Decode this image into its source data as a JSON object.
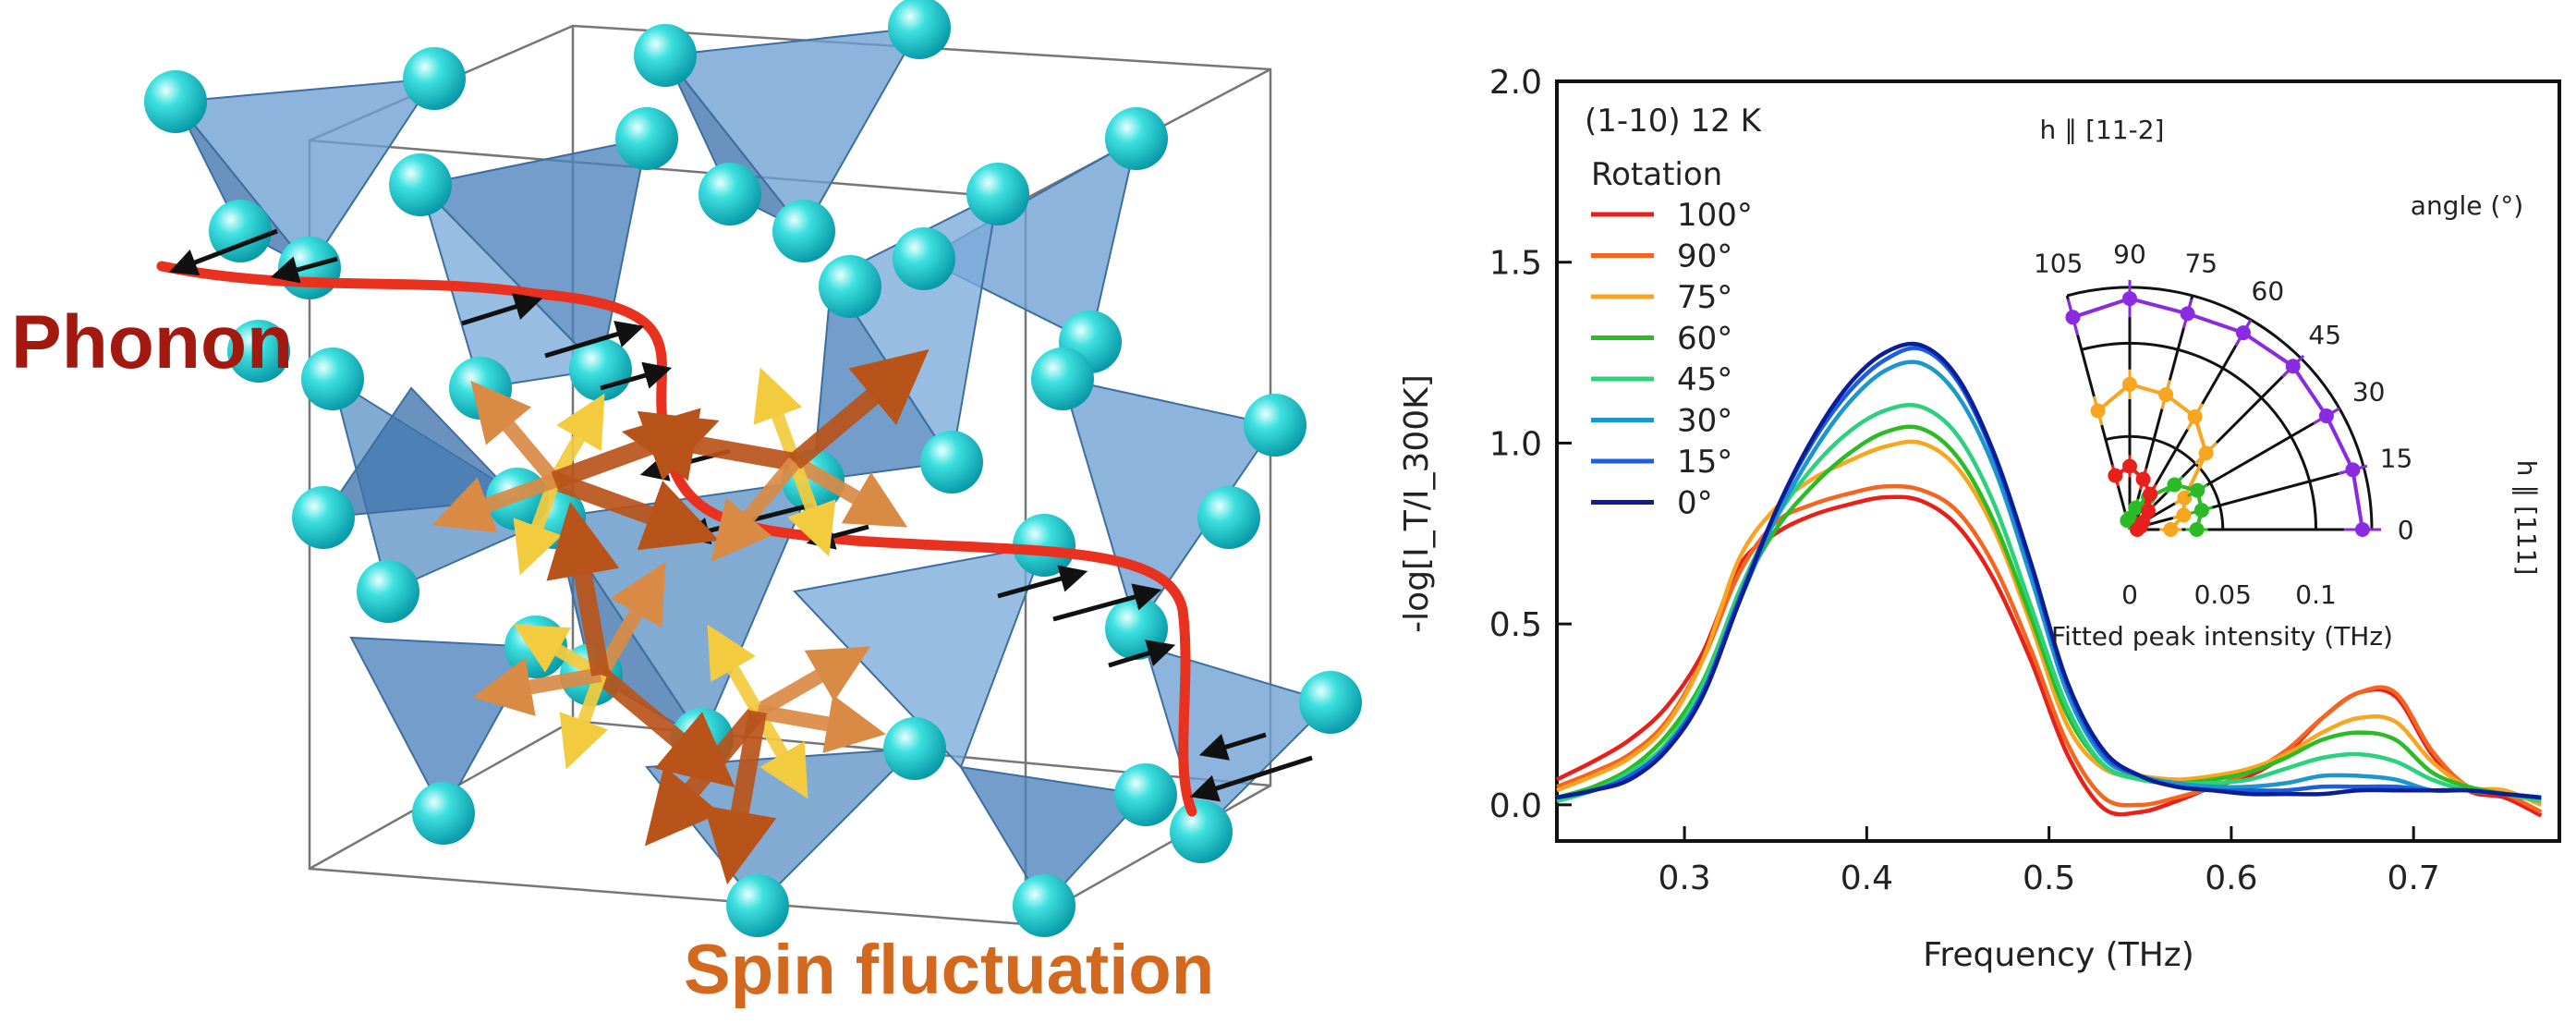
{
  "illustration": {
    "phonon_label": "Phonon",
    "spin_label": "Spin fluctuation",
    "colors": {
      "phonon": "#a1190f",
      "spin": "#d2691e",
      "path": "#e8321f",
      "atom": "#20d0d0",
      "tetrahedron": "#5f93c8",
      "arrow_large": "#b8541a",
      "arrow_medium": "#d98a45",
      "arrow_small": "#f3cb3e"
    }
  },
  "chart_data": [
    {
      "type": "line",
      "title": "(1-10) 12 K",
      "xlabel": "Frequency (THz)",
      "ylabel": "-log[I_T/I_300K]",
      "xlim": [
        0.23,
        0.78
      ],
      "ylim": [
        -0.1,
        2.0
      ],
      "xticks": [
        "0.3",
        "0.4",
        "0.5",
        "0.6",
        "0.7"
      ],
      "yticks": [
        "0.0",
        "0.5",
        "1.0",
        "1.5",
        "2.0"
      ],
      "legend_title": "Rotation",
      "legend_position": "top-left",
      "x": [
        0.23,
        0.25,
        0.27,
        0.29,
        0.31,
        0.33,
        0.35,
        0.37,
        0.39,
        0.41,
        0.43,
        0.45,
        0.47,
        0.49,
        0.51,
        0.53,
        0.55,
        0.57,
        0.59,
        0.61,
        0.63,
        0.65,
        0.67,
        0.69,
        0.71,
        0.73,
        0.75,
        0.77
      ],
      "series": [
        {
          "name": "100°",
          "color": "#e8201c",
          "values": [
            0.07,
            0.12,
            0.18,
            0.27,
            0.42,
            0.66,
            0.75,
            0.8,
            0.83,
            0.85,
            0.84,
            0.77,
            0.62,
            0.4,
            0.14,
            -0.01,
            -0.02,
            0.01,
            0.05,
            0.08,
            0.14,
            0.24,
            0.31,
            0.3,
            0.14,
            0.04,
            0.02,
            -0.03
          ]
        },
        {
          "name": "90°",
          "color": "#f46620",
          "values": [
            0.05,
            0.09,
            0.14,
            0.23,
            0.4,
            0.64,
            0.78,
            0.83,
            0.86,
            0.88,
            0.87,
            0.81,
            0.66,
            0.43,
            0.17,
            0.02,
            0.0,
            0.02,
            0.05,
            0.09,
            0.15,
            0.24,
            0.31,
            0.31,
            0.15,
            0.05,
            0.03,
            -0.02
          ]
        },
        {
          "name": "75°",
          "color": "#f8a520",
          "values": [
            0.04,
            0.08,
            0.13,
            0.22,
            0.4,
            0.68,
            0.82,
            0.9,
            0.95,
            0.99,
            1.0,
            0.93,
            0.76,
            0.5,
            0.22,
            0.1,
            0.08,
            0.07,
            0.08,
            0.1,
            0.14,
            0.2,
            0.24,
            0.23,
            0.12,
            0.05,
            0.04,
            0.0
          ]
        },
        {
          "name": "60°",
          "color": "#2bbb27",
          "values": [
            0.02,
            0.05,
            0.1,
            0.19,
            0.34,
            0.58,
            0.76,
            0.88,
            0.97,
            1.03,
            1.04,
            0.96,
            0.78,
            0.52,
            0.25,
            0.11,
            0.07,
            0.06,
            0.07,
            0.09,
            0.13,
            0.18,
            0.2,
            0.18,
            0.09,
            0.05,
            0.03,
            0.01
          ]
        },
        {
          "name": "45°",
          "color": "#2cd17e",
          "values": [
            0.01,
            0.04,
            0.09,
            0.17,
            0.33,
            0.59,
            0.79,
            0.93,
            1.03,
            1.09,
            1.1,
            1.02,
            0.83,
            0.55,
            0.27,
            0.11,
            0.07,
            0.06,
            0.06,
            0.07,
            0.1,
            0.13,
            0.14,
            0.12,
            0.07,
            0.04,
            0.03,
            0.01
          ]
        },
        {
          "name": "30°",
          "color": "#1b96cf",
          "values": [
            0.02,
            0.04,
            0.08,
            0.16,
            0.31,
            0.56,
            0.79,
            0.97,
            1.11,
            1.2,
            1.22,
            1.13,
            0.93,
            0.63,
            0.31,
            0.13,
            0.08,
            0.06,
            0.05,
            0.05,
            0.06,
            0.08,
            0.08,
            0.07,
            0.04,
            0.04,
            0.03,
            0.02
          ]
        },
        {
          "name": "15°",
          "color": "#1a5fe3",
          "values": [
            0.02,
            0.04,
            0.08,
            0.16,
            0.31,
            0.57,
            0.81,
            1.0,
            1.14,
            1.23,
            1.26,
            1.17,
            0.96,
            0.66,
            0.33,
            0.14,
            0.08,
            0.05,
            0.04,
            0.04,
            0.04,
            0.05,
            0.05,
            0.05,
            0.04,
            0.04,
            0.03,
            0.02
          ]
        },
        {
          "name": "0°",
          "color": "#0c1e96",
          "values": [
            0.02,
            0.04,
            0.07,
            0.15,
            0.3,
            0.56,
            0.81,
            1.01,
            1.16,
            1.25,
            1.27,
            1.18,
            0.97,
            0.67,
            0.34,
            0.15,
            0.08,
            0.05,
            0.04,
            0.03,
            0.03,
            0.03,
            0.04,
            0.04,
            0.04,
            0.04,
            0.03,
            0.02
          ]
        }
      ]
    },
    {
      "type": "scatter",
      "coordinate_system": "polar quarter",
      "title": "",
      "top_label": "h ∥ [11-2]",
      "right_label": "h ∥ [111]",
      "angle_label": "angle (°)",
      "radial_label": "Fitted peak intensity (THz)",
      "angle_ticks": [
        "0",
        "15",
        "30",
        "45",
        "60",
        "75",
        "90",
        "105"
      ],
      "radial_ticks": [
        "0",
        "0.05",
        "0.1"
      ],
      "radial_range": [
        0,
        0.13
      ],
      "series": [
        {
          "name": "purple",
          "color": "#8a2be2",
          "theta": [
            0,
            15,
            30,
            45,
            60,
            75,
            90,
            105
          ],
          "r": [
            0.125,
            0.124,
            0.122,
            0.124,
            0.122,
            0.12,
            0.124,
            0.118
          ],
          "err": [
            0.01,
            0.008,
            0.008,
            0.008,
            0.008,
            0.008,
            0.01,
            0.01
          ]
        },
        {
          "name": "orange",
          "color": "#f8a520",
          "theta": [
            0,
            15,
            30,
            45,
            60,
            75,
            90,
            105
          ],
          "r": [
            0.022,
            0.03,
            0.034,
            0.058,
            0.07,
            0.075,
            0.078,
            0.066
          ],
          "err": [
            0.006,
            0.006,
            0.006,
            0.008,
            0.008,
            0.008,
            0.008,
            0.008
          ]
        },
        {
          "name": "green",
          "color": "#2bbb27",
          "theta": [
            0,
            15,
            30,
            45,
            60,
            75,
            90,
            105
          ],
          "r": [
            0.036,
            0.04,
            0.042,
            0.034,
            0.02,
            0.012,
            0.006,
            0.005
          ],
          "err": [
            0.006,
            0.006,
            0.006,
            0.006,
            0.006,
            0.005,
            0.005,
            0.005
          ]
        },
        {
          "name": "red",
          "color": "#e8201c",
          "theta": [
            0,
            15,
            30,
            45,
            60,
            75,
            90,
            105
          ],
          "r": [
            0.004,
            0.006,
            0.008,
            0.014,
            0.022,
            0.028,
            0.034,
            0.03
          ],
          "err": [
            0.004,
            0.004,
            0.005,
            0.005,
            0.006,
            0.006,
            0.006,
            0.006
          ]
        }
      ]
    }
  ]
}
